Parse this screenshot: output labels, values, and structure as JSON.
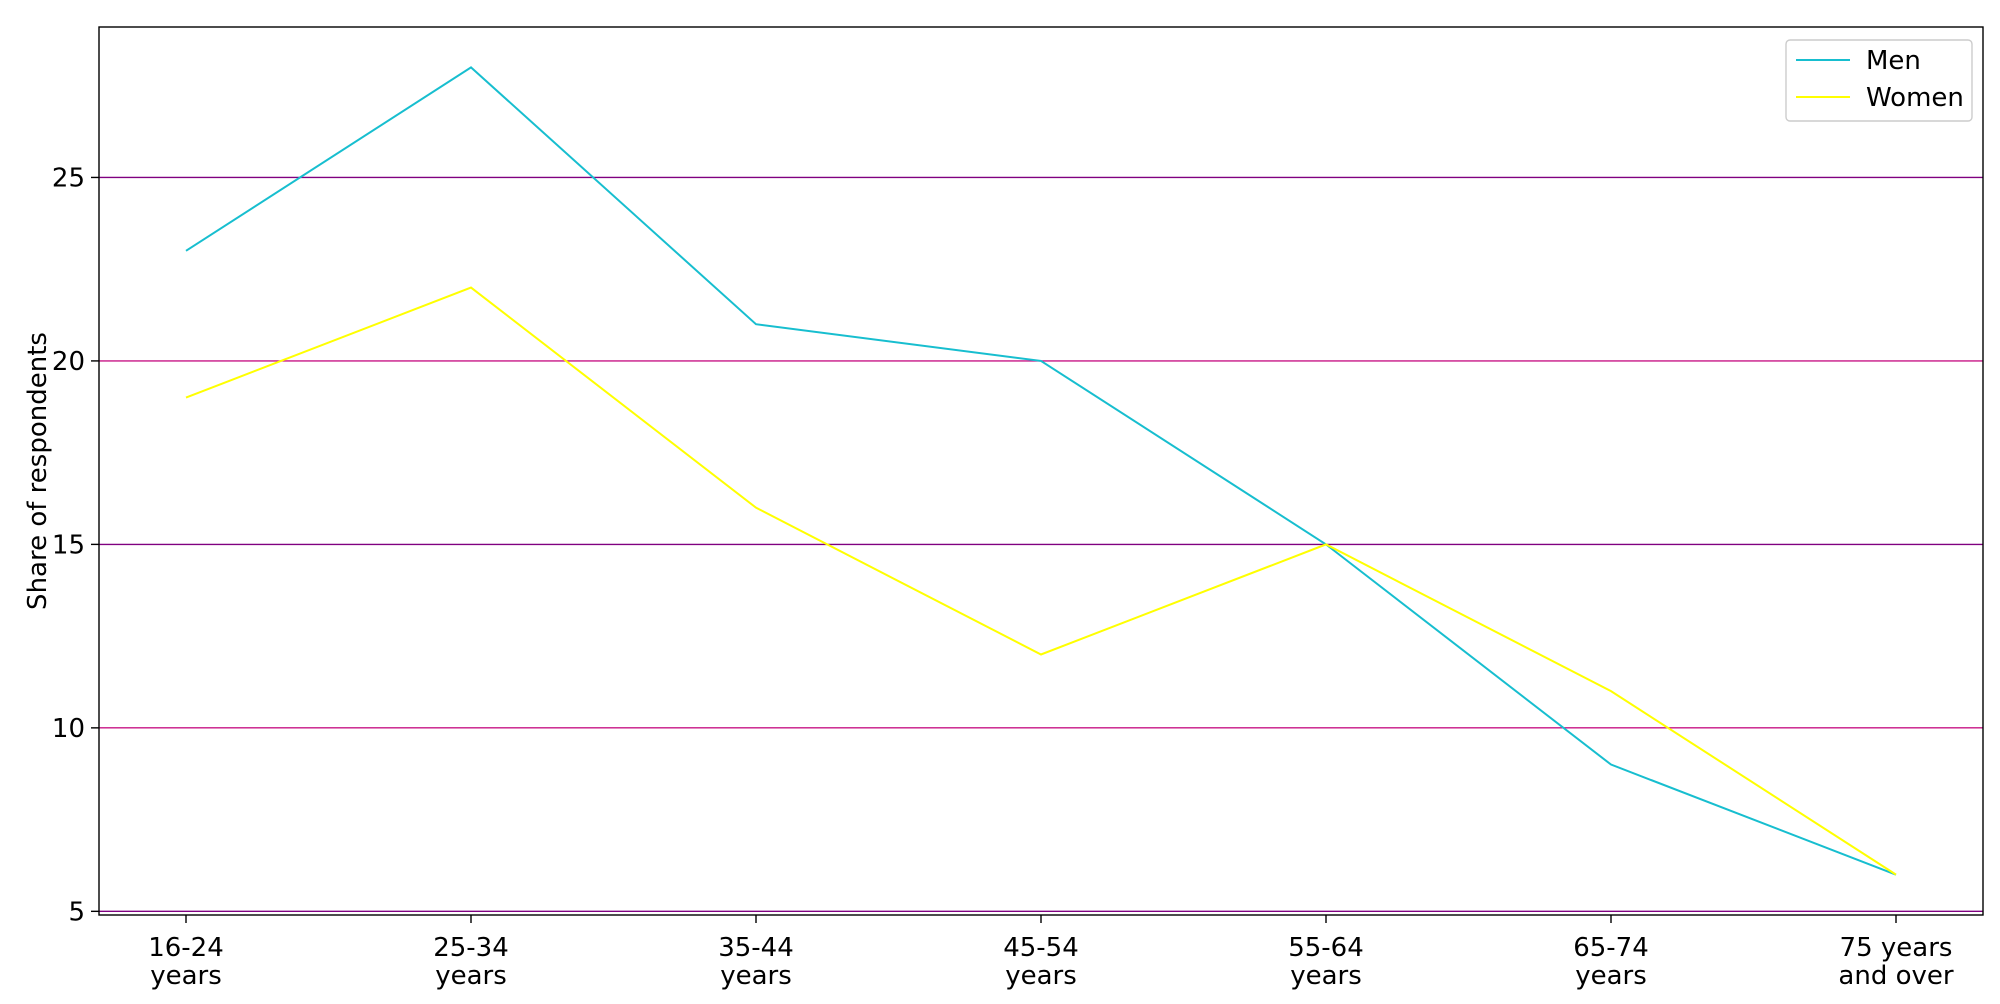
{
  "chart_data": {
    "type": "line",
    "title": "",
    "xlabel": "",
    "ylabel": "Share of respondents",
    "categories": [
      [
        "16-24",
        "years"
      ],
      [
        "25-34",
        "years"
      ],
      [
        "35-44",
        "years"
      ],
      [
        "45-54",
        "years"
      ],
      [
        "55-64",
        "years"
      ],
      [
        "65-74",
        "years"
      ],
      [
        "75 years",
        "and over"
      ]
    ],
    "series": [
      {
        "name": "Men",
        "color": "#17becf",
        "values": [
          23,
          28,
          21,
          20,
          15,
          9,
          6
        ]
      },
      {
        "name": "Women",
        "color": "#ffff00",
        "values": [
          19,
          22,
          16,
          12,
          15,
          11,
          6
        ]
      }
    ],
    "ylim": [
      4.9,
      29.1
    ],
    "yticks": [
      5,
      10,
      15,
      20,
      25
    ],
    "grid": "horizontal",
    "grid_colors": [
      "#800080",
      "#c71585"
    ],
    "legend": {
      "placement": "top-right"
    }
  }
}
